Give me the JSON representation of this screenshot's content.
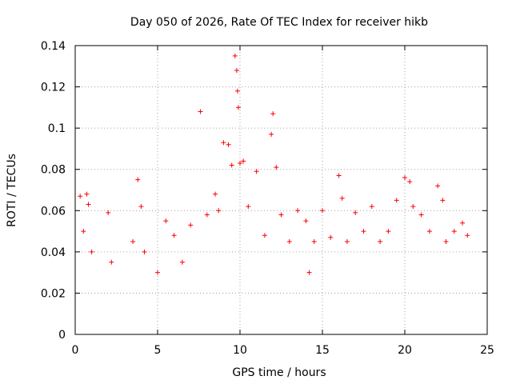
{
  "chart_data": {
    "type": "scatter",
    "title": "Day 050 of 2026, Rate Of TEC Index for receiver hikb",
    "xlabel": "GPS time / hours",
    "ylabel": "ROTI / TECUs",
    "xlim": [
      0,
      25
    ],
    "ylim": [
      0,
      0.14
    ],
    "x_ticks": [
      0,
      5,
      10,
      15,
      20,
      25
    ],
    "y_ticks": [
      0,
      0.02,
      0.04,
      0.06,
      0.08,
      0.1,
      0.12,
      0.14
    ],
    "x_tick_labels": [
      "0",
      "5",
      "10",
      "15",
      "20",
      "25"
    ],
    "y_tick_labels": [
      "0",
      "0.02",
      "0.04",
      "0.06",
      "0.08",
      "0.1",
      "0.12",
      "0.14"
    ],
    "grid": true,
    "marker": "+",
    "marker_color": "#ff0000",
    "series": [
      {
        "name": "ROTI",
        "points_note": "dense point cloud, representative samples",
        "x": [
          0.3,
          0.5,
          0.7,
          0.8,
          1.0,
          2.0,
          2.2,
          3.5,
          3.8,
          4.0,
          4.2,
          5.0,
          5.5,
          6.0,
          6.5,
          7.0,
          7.6,
          8.0,
          8.5,
          8.7,
          9.0,
          9.3,
          9.5,
          9.7,
          9.8,
          9.85,
          9.9,
          10.0,
          10.2,
          10.5,
          11.0,
          11.5,
          11.9,
          12.0,
          12.2,
          12.5,
          13.0,
          13.5,
          14.0,
          14.2,
          14.5,
          15.0,
          15.5,
          16.0,
          16.2,
          16.5,
          17.0,
          17.5,
          18.0,
          18.5,
          19.0,
          19.5,
          20.0,
          20.3,
          20.5,
          21.0,
          21.5,
          22.0,
          22.3,
          22.5,
          23.0,
          23.5,
          23.8
        ],
        "y": [
          0.067,
          0.05,
          0.068,
          0.063,
          0.04,
          0.059,
          0.035,
          0.045,
          0.075,
          0.062,
          0.04,
          0.03,
          0.055,
          0.048,
          0.035,
          0.053,
          0.108,
          0.058,
          0.068,
          0.06,
          0.093,
          0.092,
          0.082,
          0.135,
          0.128,
          0.118,
          0.11,
          0.083,
          0.084,
          0.062,
          0.079,
          0.048,
          0.097,
          0.107,
          0.081,
          0.058,
          0.045,
          0.06,
          0.055,
          0.03,
          0.045,
          0.06,
          0.047,
          0.077,
          0.066,
          0.045,
          0.059,
          0.05,
          0.062,
          0.045,
          0.05,
          0.065,
          0.076,
          0.074,
          0.062,
          0.058,
          0.05,
          0.072,
          0.065,
          0.045,
          0.05,
          0.054,
          0.048
        ]
      }
    ]
  }
}
